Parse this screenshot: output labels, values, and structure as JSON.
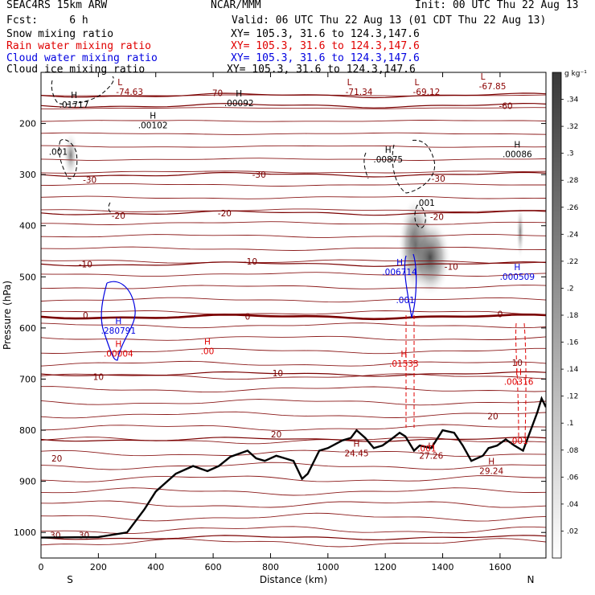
{
  "header": {
    "model": "SEAC4RS 15km ARW",
    "org": "NCAR/MMM",
    "init": "Init: 00 UTC Thu 22 Aug 13",
    "fcst": "Fcst:     6 h",
    "valid": "Valid: 06 UTC Thu 22 Aug 13 (01 CDT Thu 22 Aug 13)",
    "fields": [
      {
        "name": "Snow mixing ratio",
        "xy": "XY= 105.3, 31.6 to 124.3,147.6",
        "color": "#000000"
      },
      {
        "name": "Rain water mixing ratio",
        "xy": "XY= 105.3, 31.6 to 124.3,147.6",
        "color": "#e00000"
      },
      {
        "name": "Cloud water mixing ratio",
        "xy": "XY= 105.3, 31.6 to 124.3,147.6",
        "color": "#0000e0"
      },
      {
        "name": "Cloud ice mixing ratio",
        "xy": "XY= 105.3, 31.6 to 124.3,147.6",
        "color": "#000000"
      }
    ]
  },
  "chart_data": {
    "type": "heatmap",
    "xlabel": "Distance (km)",
    "ylabel": "Pressure (hPa)",
    "xlim": [
      0,
      1760
    ],
    "ylim": [
      1050,
      100
    ],
    "x_ticks": [
      0,
      200,
      400,
      600,
      800,
      1000,
      1200,
      1400,
      1600
    ],
    "y_ticks": [
      200,
      300,
      400,
      500,
      600,
      700,
      800,
      900,
      1000
    ],
    "x_end_labels": {
      "left": "S",
      "right": "N"
    },
    "colorbar": {
      "unit": "g kg⁻¹",
      "ticks": [
        ".02",
        ".04",
        ".06",
        ".08",
        ".1",
        ".12",
        ".14",
        ".16",
        ".18",
        ".2",
        ".22",
        ".24",
        ".26",
        ".28",
        ".3",
        ".32",
        ".34"
      ],
      "range": [
        0,
        0.36
      ]
    },
    "temperature_contours_C": [
      {
        "value": -70,
        "y_hpa": 145,
        "labels": [
          {
            "text": "-70",
            "x": 610,
            "y": 140
          }
        ]
      },
      {
        "value": -60,
        "y_hpa": 165,
        "labels": [
          {
            "text": "-60",
            "x": 1620,
            "y": 165
          }
        ]
      },
      {
        "value": -30,
        "y_hpa": 300,
        "labels": [
          {
            "text": "-30",
            "x": 170,
            "y": 310
          },
          {
            "text": "-30",
            "x": 760,
            "y": 300
          },
          {
            "text": "-30",
            "x": 1385,
            "y": 308
          }
        ]
      },
      {
        "value": -20,
        "y_hpa": 375,
        "labels": [
          {
            "text": "-20",
            "x": 270,
            "y": 380
          },
          {
            "text": "-20",
            "x": 640,
            "y": 375
          },
          {
            "text": "-20",
            "x": 1380,
            "y": 382
          }
        ]
      },
      {
        "value": -10,
        "y_hpa": 475,
        "labels": [
          {
            "text": "-10",
            "x": 155,
            "y": 475
          },
          {
            "text": "-10",
            "x": 730,
            "y": 470
          },
          {
            "text": "-10",
            "x": 1430,
            "y": 480
          }
        ]
      },
      {
        "value": 0,
        "y_hpa": 578,
        "labels": [
          {
            "text": "0",
            "x": 155,
            "y": 575
          },
          {
            "text": "0",
            "x": 720,
            "y": 577
          },
          {
            "text": "0",
            "x": 1600,
            "y": 573
          }
        ]
      },
      {
        "value": 10,
        "y_hpa": 690,
        "labels": [
          {
            "text": "10",
            "x": 200,
            "y": 695
          },
          {
            "text": "10",
            "x": 825,
            "y": 688
          },
          {
            "text": "10",
            "x": 1660,
            "y": 668
          }
        ]
      },
      {
        "value": 20,
        "y_hpa": 818,
        "labels": [
          {
            "text": "20",
            "x": 55,
            "y": 855
          },
          {
            "text": "20",
            "x": 820,
            "y": 808
          },
          {
            "text": "20",
            "x": 1575,
            "y": 772
          }
        ]
      },
      {
        "value": 30,
        "y_hpa": 1010,
        "labels": [
          {
            "text": "30",
            "x": 50,
            "y": 1005
          },
          {
            "text": "30",
            "x": 150,
            "y": 1005
          }
        ]
      }
    ],
    "extremes": [
      {
        "label": "L",
        "value": "-74.63",
        "x": 275,
        "y": 133,
        "color": "#8b0000"
      },
      {
        "label": "L",
        "value": "-71.34",
        "x": 1075,
        "y": 133,
        "color": "#8b0000"
      },
      {
        "label": "L",
        "value": "-69.12",
        "x": 1310,
        "y": 133,
        "color": "#8b0000"
      },
      {
        "label": "L",
        "value": "-67.85",
        "x": 1540,
        "y": 122,
        "color": "#8b0000"
      },
      {
        "label": "H",
        "value": ".01717",
        "x": 115,
        "y": 158,
        "color": "#000000"
      },
      {
        "label": "H",
        "value": ".00092",
        "x": 690,
        "y": 155,
        "color": "#000000"
      },
      {
        "label": "H",
        "value": ".00102",
        "x": 390,
        "y": 198,
        "color": "#000000"
      },
      {
        "label": "H",
        "value": ".00875",
        "x": 1210,
        "y": 265,
        "color": "#000000"
      },
      {
        "label": "H",
        "value": ".00086",
        "x": 1660,
        "y": 255,
        "color": "#000000"
      },
      {
        "label": "H",
        "value": ".006714",
        "x": 1250,
        "y": 485,
        "color": "#0000e0"
      },
      {
        "label": "H",
        "value": ".000509",
        "x": 1660,
        "y": 495,
        "color": "#0000e0"
      },
      {
        "label": "H",
        "value": ".280791",
        "x": 270,
        "y": 600,
        "color": "#0000e0"
      },
      {
        "label": "H",
        "value": ".00004",
        "x": 270,
        "y": 645,
        "color": "#e00000"
      },
      {
        "label": "H",
        "value": ".00",
        "x": 580,
        "y": 640,
        "color": "#e00000"
      },
      {
        "label": "H",
        "value": ".01533",
        "x": 1265,
        "y": 665,
        "color": "#e00000"
      },
      {
        "label": "H",
        "value": ".00316",
        "x": 1665,
        "y": 700,
        "color": "#e00000"
      },
      {
        "label": "H",
        "value": "24.45",
        "x": 1100,
        "y": 840,
        "color": "#8b0000"
      },
      {
        "label": "H",
        "value": "27.26",
        "x": 1360,
        "y": 845,
        "color": "#8b0000"
      },
      {
        "label": "H",
        "value": "29.24",
        "x": 1570,
        "y": 875,
        "color": "#8b0000"
      }
    ],
    "contour_labels_misc": [
      {
        "text": ".001",
        "x": 60,
        "y": 255,
        "color": "#000000"
      },
      {
        "text": ".001",
        "x": 1340,
        "y": 355,
        "color": "#000000"
      },
      {
        "text": ".001",
        "x": 1270,
        "y": 545,
        "color": "#0000e0"
      },
      {
        "text": ".001",
        "x": 1345,
        "y": 835,
        "color": "#e00000"
      },
      {
        "text": ".001",
        "x": 1665,
        "y": 820,
        "color": "#e00000"
      }
    ],
    "terrain_pressure_hpa": [
      [
        0,
        1010
      ],
      [
        200,
        1009
      ],
      [
        300,
        1000
      ],
      [
        360,
        955
      ],
      [
        400,
        920
      ],
      [
        470,
        885
      ],
      [
        530,
        870
      ],
      [
        580,
        880
      ],
      [
        620,
        870
      ],
      [
        660,
        852
      ],
      [
        720,
        840
      ],
      [
        750,
        855
      ],
      [
        780,
        860
      ],
      [
        820,
        850
      ],
      [
        850,
        855
      ],
      [
        880,
        860
      ],
      [
        910,
        895
      ],
      [
        930,
        885
      ],
      [
        970,
        840
      ],
      [
        1000,
        835
      ],
      [
        1050,
        820
      ],
      [
        1080,
        815
      ],
      [
        1100,
        800
      ],
      [
        1130,
        815
      ],
      [
        1160,
        835
      ],
      [
        1190,
        830
      ],
      [
        1220,
        818
      ],
      [
        1250,
        805
      ],
      [
        1270,
        812
      ],
      [
        1300,
        840
      ],
      [
        1320,
        830
      ],
      [
        1360,
        835
      ],
      [
        1400,
        800
      ],
      [
        1440,
        805
      ],
      [
        1470,
        830
      ],
      [
        1500,
        860
      ],
      [
        1540,
        850
      ],
      [
        1560,
        835
      ],
      [
        1590,
        830
      ],
      [
        1620,
        818
      ],
      [
        1650,
        830
      ],
      [
        1680,
        840
      ],
      [
        1700,
        810
      ],
      [
        1730,
        765
      ],
      [
        1745,
        738
      ],
      [
        1760,
        755
      ]
    ]
  }
}
